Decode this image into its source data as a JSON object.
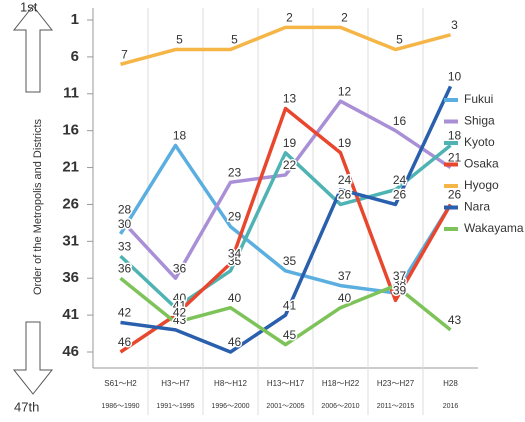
{
  "chart_data": {
    "type": "line",
    "y_axis_label": "Order of the Metropolis and Districts",
    "top_label": "1st",
    "bottom_label": "47th",
    "categories": [
      "S61～H2",
      "H3～H7",
      "H8～H12",
      "H13～H17",
      "H18～H22",
      "H23～H27",
      "H28"
    ],
    "category_years": [
      "1986～1990",
      "1991～1995",
      "1996～2000",
      "2001～2005",
      "2006～2010",
      "2011～2015",
      "2016"
    ],
    "ylim": [
      1,
      46
    ],
    "y_inverted": true,
    "yticks": [
      1,
      6,
      11,
      16,
      21,
      26,
      31,
      36,
      41,
      46
    ],
    "series": [
      {
        "name": "Fukui",
        "color": "#5aaee0",
        "values": [
          30,
          18,
          29,
          35,
          37,
          38,
          26
        ]
      },
      {
        "name": "Shiga",
        "color": "#a98fd6",
        "values": [
          28,
          36,
          23,
          22,
          12,
          16,
          21
        ]
      },
      {
        "name": "Kyoto",
        "color": "#4fb3b3",
        "values": [
          33,
          40,
          35,
          19,
          26,
          24,
          18
        ]
      },
      {
        "name": "Osaka",
        "color": "#e8472e",
        "values": [
          46,
          41,
          34,
          13,
          19,
          39,
          26
        ]
      },
      {
        "name": "Hyogo",
        "color": "#f5b547",
        "values": [
          7,
          5,
          5,
          2,
          2,
          5,
          3
        ]
      },
      {
        "name": "Nara",
        "color": "#2a5fad",
        "values": [
          42,
          43,
          46,
          41,
          24,
          26,
          10
        ]
      },
      {
        "name": "Wakayama",
        "color": "#7dc35a",
        "values": [
          36,
          42,
          40,
          45,
          40,
          37,
          43
        ]
      }
    ]
  }
}
